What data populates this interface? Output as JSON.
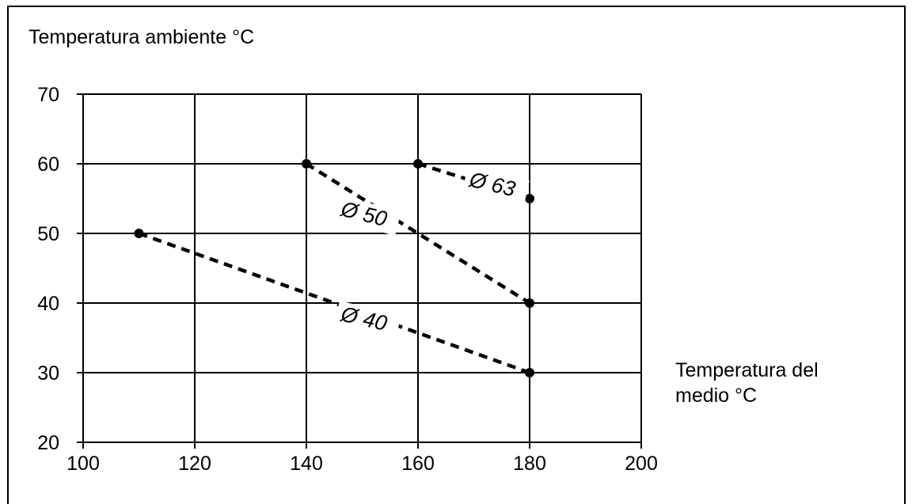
{
  "chart_data": {
    "type": "line",
    "ylabel": "Temperatura ambiente °C",
    "xlabel_line1": "Temperatura del",
    "xlabel_line2": "medio °C",
    "xlim": [
      100,
      200
    ],
    "ylim": [
      20,
      70
    ],
    "x_ticks": [
      100,
      120,
      140,
      160,
      180,
      200
    ],
    "y_ticks": [
      20,
      30,
      40,
      50,
      60,
      70
    ],
    "grid": true,
    "series": [
      {
        "name": "Ø 40",
        "points": [
          [
            110,
            50
          ],
          [
            180,
            30
          ]
        ],
        "label_at": [
          146,
          37.5
        ],
        "angle": 13
      },
      {
        "name": "Ø 50",
        "points": [
          [
            140,
            60
          ],
          [
            180,
            40
          ]
        ],
        "label_at": [
          146,
          52.6
        ],
        "angle": 14
      },
      {
        "name": "Ø 63",
        "points": [
          [
            160,
            60
          ],
          [
            180,
            55
          ]
        ],
        "label_at": [
          169,
          56.8
        ],
        "angle": 13
      }
    ]
  }
}
